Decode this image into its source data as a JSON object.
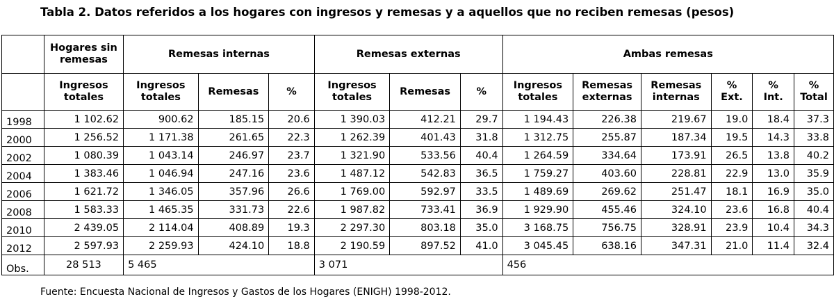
{
  "title": "Tabla 2. Datos referidos a los hogares con ingresos y remesas y a aquellos que no reciben remesas (pesos)",
  "header": {
    "group1": "Hogares sin remesas",
    "group2": "Remesas internas",
    "group3": "Remesas externas",
    "group4": "Ambas remesas",
    "sub": [
      "Ingresos totales",
      "Ingresos totales",
      "Remesas",
      "%",
      "Ingresos totales",
      "Remesas",
      "%",
      "Ingresos totales",
      "Remesas externas",
      "Remesas internas",
      "% Ext.",
      "% Int.",
      "% Total"
    ]
  },
  "rows": [
    {
      "year": "1998",
      "cells": [
        "1 102.62",
        "900.62",
        "185.15",
        "20.6",
        "1 390.03",
        "412.21",
        "29.7",
        "1 194.43",
        "226.38",
        "219.67",
        "19.0",
        "18.4",
        "37.3"
      ]
    },
    {
      "year": "2000",
      "cells": [
        "1 256.52",
        "1 171.38",
        "261.65",
        "22.3",
        "1 262.39",
        "401.43",
        "31.8",
        "1 312.75",
        "255.87",
        "187.34",
        "19.5",
        "14.3",
        "33.8"
      ]
    },
    {
      "year": "2002",
      "cells": [
        "1 080.39",
        "1 043.14",
        "246.97",
        "23.7",
        "1 321.90",
        "533.56",
        "40.4",
        "1 264.59",
        "334.64",
        "173.91",
        "26.5",
        "13.8",
        "40.2"
      ]
    },
    {
      "year": "2004",
      "cells": [
        "1 383.46",
        "1 046.94",
        "247.16",
        "23.6",
        "1 487.12",
        "542.83",
        "36.5",
        "1 759.27",
        "403.60",
        "228.81",
        "22.9",
        "13.0",
        "35.9"
      ]
    },
    {
      "year": "2006",
      "cells": [
        "1 621.72",
        "1 346.05",
        "357.96",
        "26.6",
        "1 769.00",
        "592.97",
        "33.5",
        "1 489.69",
        "269.62",
        "251.47",
        "18.1",
        "16.9",
        "35.0"
      ]
    },
    {
      "year": "2008",
      "cells": [
        "1 583.33",
        "1 465.35",
        "331.73",
        "22.6",
        "1 987.82",
        "733.41",
        "36.9",
        "1 929.90",
        "455.46",
        "324.10",
        "23.6",
        "16.8",
        "40.4"
      ]
    },
    {
      "year": "2010",
      "cells": [
        "2 439.05",
        "2 114.04",
        "408.89",
        "19.3",
        "2 297.30",
        "803.18",
        "35.0",
        "3 168.75",
        "756.75",
        "328.91",
        "23.9",
        "10.4",
        "34.3"
      ]
    },
    {
      "year": "2012",
      "cells": [
        "2 597.93",
        "2 259.93",
        "424.10",
        "18.8",
        "2 190.59",
        "897.52",
        "41.0",
        "3 045.45",
        "638.16",
        "347.31",
        "21.0",
        "11.4",
        "32.4"
      ]
    }
  ],
  "obs": {
    "label": "Obs.",
    "sin": "28 513",
    "internas": "5 465",
    "externas": "3 071",
    "ambas": "456"
  },
  "source": "Fuente: Encuesta Nacional de Ingresos y Gastos de los Hogares (ENIGH) 1998-2012."
}
